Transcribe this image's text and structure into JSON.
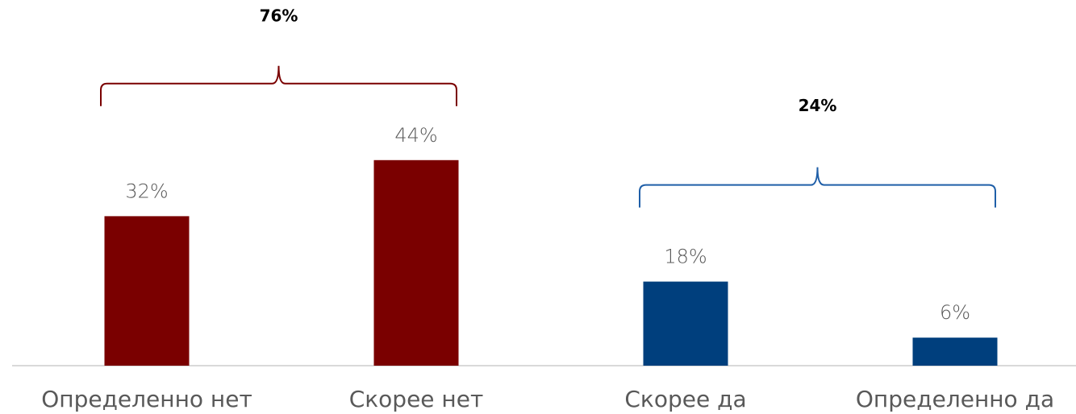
{
  "chart_data": {
    "type": "bar",
    "categories": [
      "Определенно нет",
      "Скорее нет",
      "Скорее да",
      "Определенно да"
    ],
    "values": [
      32,
      44,
      18,
      6
    ],
    "value_labels": [
      "32%",
      "44%",
      "18%",
      "6%"
    ],
    "colors": [
      "#7a0000",
      "#7a0000",
      "#003f7d",
      "#003f7d"
    ],
    "annotations": [
      {
        "text": "76%",
        "color": "#7a0000"
      },
      {
        "text": "24%",
        "color": "#1f5fa8"
      }
    ]
  }
}
